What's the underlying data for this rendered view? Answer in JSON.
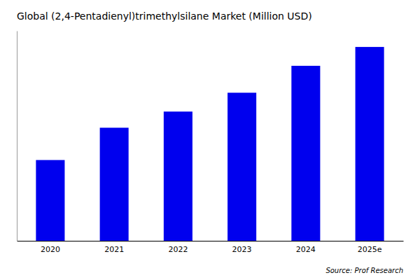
{
  "chart_data": {
    "type": "bar",
    "title": "Global (2,4-Pentadienyl)trimethylsilane Market (Million USD)",
    "categories": [
      "2020",
      "2021",
      "2022",
      "2023",
      "2024",
      "2025e"
    ],
    "values": [
      3.0,
      4.2,
      4.8,
      5.5,
      6.5,
      7.2
    ],
    "color": "#0000ee",
    "ylim": [
      0,
      7.8
    ],
    "tick_labels": "x",
    "grid": false,
    "annotation": "Source: Prof Research"
  }
}
